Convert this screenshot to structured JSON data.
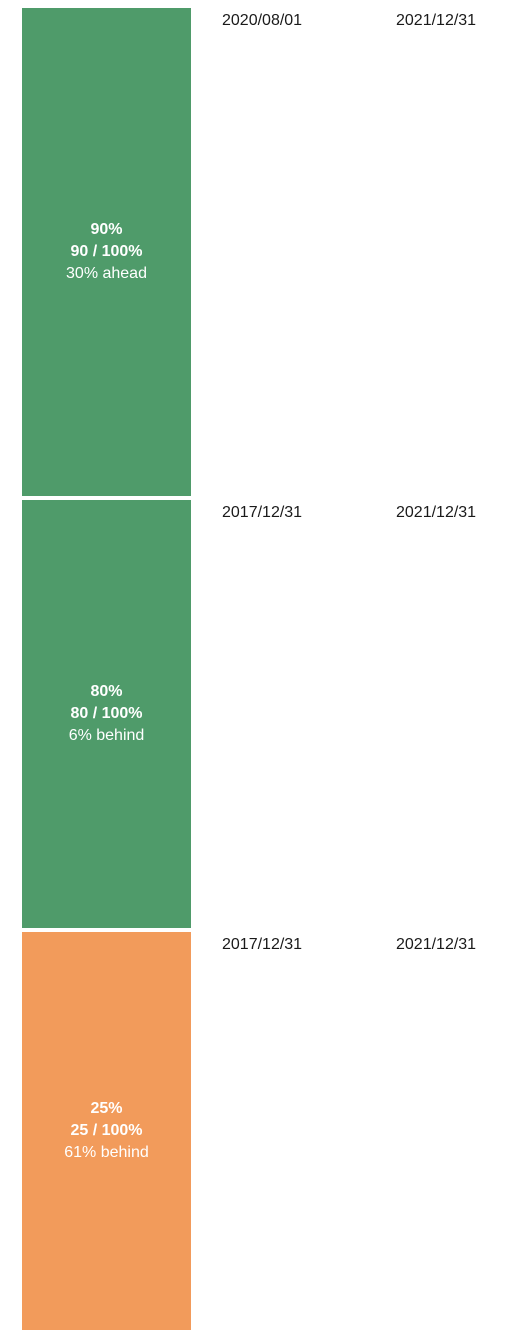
{
  "rows": [
    {
      "percent_label": "90%",
      "fraction_label": "90 / 100%",
      "status_label": "30% ahead",
      "start_date": "2020/08/01",
      "end_date": "2021/12/31",
      "progress": 0.9,
      "color": "#4f9b6a"
    },
    {
      "percent_label": "80%",
      "fraction_label": "80 / 100%",
      "status_label": "6% behind",
      "start_date": "2017/12/31",
      "end_date": "2021/12/31",
      "progress": 0.8,
      "color": "#4f9b6a"
    },
    {
      "percent_label": "25%",
      "fraction_label": "25 / 100%",
      "status_label": "61% behind",
      "start_date": "2017/12/31",
      "end_date": "2021/12/31",
      "progress": 0.25,
      "color": "#f29b5b"
    }
  ]
}
